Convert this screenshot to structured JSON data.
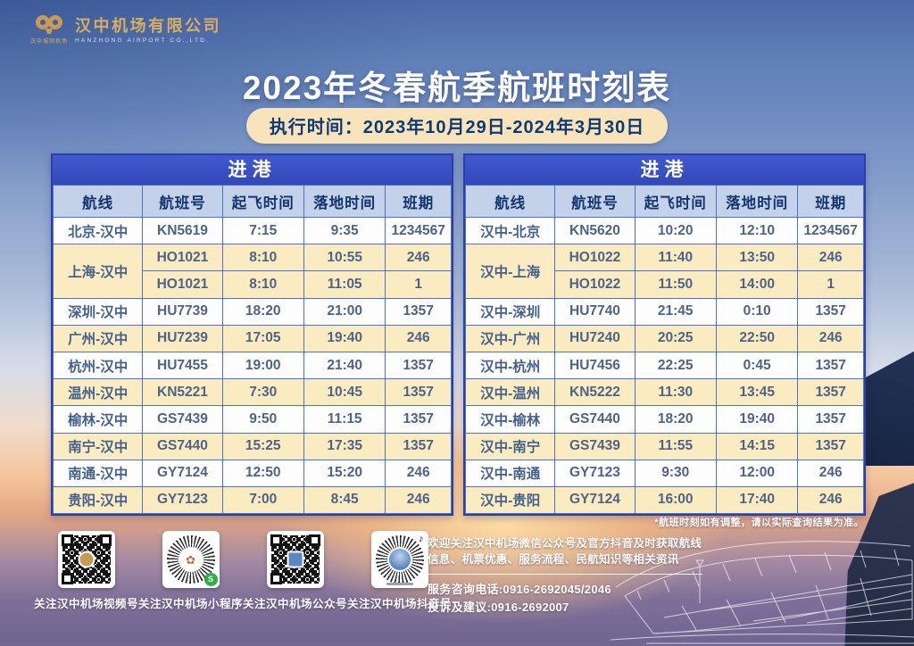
{
  "logo": {
    "seal_text": "汉中城固机场",
    "company_cn": "汉中机场有限公司",
    "company_en": "HANZHONG AIRPORT CO.,LTD."
  },
  "title": "2023年冬春航季航班时刻表",
  "subtitle": "执行时间：2023年10月29日-2024年3月30日",
  "colors": {
    "table_title_blue": "#3a52c6",
    "header_row_blue": "#c3d2e8",
    "row_yellow": "#faebc1",
    "subtitle_cream": "#f8e3ba",
    "logo_gold": "#d9ae5e",
    "header_text_navy": "#123570",
    "cell_text_slate": "#4d6488"
  },
  "tables": [
    {
      "title": "进港",
      "headers": [
        "航线",
        "航班号",
        "起飞时间",
        "落地时间",
        "班期"
      ],
      "rows": [
        {
          "route": "北京-汉中",
          "span": 1,
          "flight": "KN5619",
          "dep": "7:15",
          "arr": "9:35",
          "days": "1234567",
          "band": "white"
        },
        {
          "route": "上海-汉中",
          "span": 2,
          "flight": "HO1021",
          "dep": "8:10",
          "arr": "10:55",
          "days": "246",
          "band": "yellow"
        },
        {
          "route": null,
          "span": 0,
          "flight": "HO1021",
          "dep": "8:10",
          "arr": "11:05",
          "days": "1",
          "band": "yellow"
        },
        {
          "route": "深圳-汉中",
          "span": 1,
          "flight": "HU7739",
          "dep": "18:20",
          "arr": "21:00",
          "days": "1357",
          "band": "white"
        },
        {
          "route": "广州-汉中",
          "span": 1,
          "flight": "HU7239",
          "dep": "17:05",
          "arr": "19:40",
          "days": "246",
          "band": "yellow"
        },
        {
          "route": "杭州-汉中",
          "span": 1,
          "flight": "HU7455",
          "dep": "19:00",
          "arr": "21:40",
          "days": "1357",
          "band": "white"
        },
        {
          "route": "温州-汉中",
          "span": 1,
          "flight": "KN5221",
          "dep": "7:30",
          "arr": "10:45",
          "days": "1357",
          "band": "yellow"
        },
        {
          "route": "榆林-汉中",
          "span": 1,
          "flight": "GS7439",
          "dep": "9:50",
          "arr": "11:15",
          "days": "1357",
          "band": "white"
        },
        {
          "route": "南宁-汉中",
          "span": 1,
          "flight": "GS7440",
          "dep": "15:25",
          "arr": "17:35",
          "days": "1357",
          "band": "yellow"
        },
        {
          "route": "南通-汉中",
          "span": 1,
          "flight": "GY7124",
          "dep": "12:50",
          "arr": "15:20",
          "days": "246",
          "band": "white"
        },
        {
          "route": "贵阳-汉中",
          "span": 1,
          "flight": "GY7123",
          "dep": "7:00",
          "arr": "8:45",
          "days": "246",
          "band": "yellow"
        }
      ]
    },
    {
      "title": "进港",
      "headers": [
        "航线",
        "航班号",
        "起飞时间",
        "落地时间",
        "班期"
      ],
      "rows": [
        {
          "route": "汉中-北京",
          "span": 1,
          "flight": "KN5620",
          "dep": "10:20",
          "arr": "12:10",
          "days": "1234567",
          "band": "white"
        },
        {
          "route": "汉中-上海",
          "span": 2,
          "flight": "HO1022",
          "dep": "11:40",
          "arr": "13:50",
          "days": "246",
          "band": "yellow"
        },
        {
          "route": null,
          "span": 0,
          "flight": "HO1022",
          "dep": "11:50",
          "arr": "14:00",
          "days": "1",
          "band": "yellow"
        },
        {
          "route": "汉中-深圳",
          "span": 1,
          "flight": "HU7740",
          "dep": "21:45",
          "arr": "0:10",
          "days": "1357",
          "band": "white"
        },
        {
          "route": "汉中-广州",
          "span": 1,
          "flight": "HU7240",
          "dep": "20:25",
          "arr": "22:50",
          "days": "246",
          "band": "yellow"
        },
        {
          "route": "汉中-杭州",
          "span": 1,
          "flight": "HU7456",
          "dep": "22:25",
          "arr": "0:45",
          "days": "1357",
          "band": "white"
        },
        {
          "route": "汉中-温州",
          "span": 1,
          "flight": "KN5222",
          "dep": "11:30",
          "arr": "13:45",
          "days": "1357",
          "band": "yellow"
        },
        {
          "route": "汉中-榆林",
          "span": 1,
          "flight": "GS7440",
          "dep": "18:20",
          "arr": "19:40",
          "days": "1357",
          "band": "white"
        },
        {
          "route": "汉中-南宁",
          "span": 1,
          "flight": "GS7439",
          "dep": "11:55",
          "arr": "14:15",
          "days": "1357",
          "band": "yellow"
        },
        {
          "route": "汉中-南通",
          "span": 1,
          "flight": "GY7123",
          "dep": "9:30",
          "arr": "12:00",
          "days": "246",
          "band": "white"
        },
        {
          "route": "汉中-贵阳",
          "span": 1,
          "flight": "GY7124",
          "dep": "16:00",
          "arr": "17:40",
          "days": "246",
          "band": "yellow"
        }
      ]
    }
  ],
  "footnote": "*航班时刻如有调整，请以实际查询结果为准。",
  "promo": {
    "line1": "欢迎关注汉中机场微信公众号及官方抖音及时获取航线信息、机票优惠、服务流程、民航知识等相关资讯",
    "phone1": "服务咨询电话:0916-2692045/2046",
    "phone2": "投诉及建议:0916-2692007"
  },
  "qr_items": [
    {
      "label": "关注汉中机场视频号"
    },
    {
      "label": "关注汉中机场小程序"
    },
    {
      "label": "关注汉中机场公众号"
    },
    {
      "label": "关注汉中机场抖音号"
    }
  ]
}
